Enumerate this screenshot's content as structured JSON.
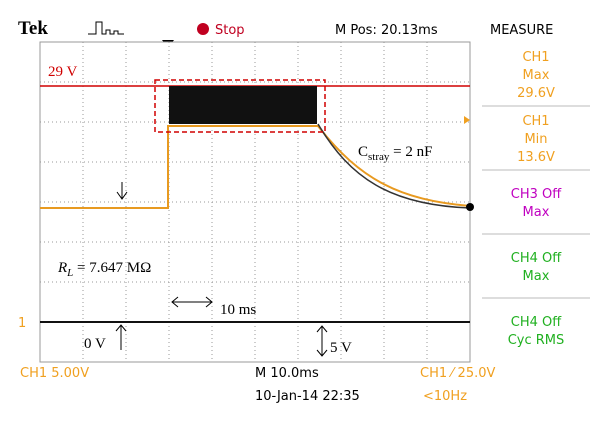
{
  "header": {
    "brand": "Tek",
    "status": "Stop",
    "position": "M Pos: 20.13ms",
    "panel_title": "MEASURE"
  },
  "measure": [
    {
      "lines": [
        "CH1",
        "Max",
        "29.6V"
      ],
      "color": "#f0a020"
    },
    {
      "lines": [
        "CH1",
        "Min",
        "13.6V"
      ],
      "color": "#f0a020"
    },
    {
      "lines": [
        "CH3 Off",
        "Max"
      ],
      "color": "#c000c0"
    },
    {
      "lines": [
        "CH4 Off",
        "Max"
      ],
      "color": "#20b020"
    },
    {
      "lines": [
        "CH4 Off",
        "Cyc RMS"
      ],
      "color": "#20b020"
    }
  ],
  "footer": {
    "ch_scale": "CH1  5.00V",
    "timebase": "M 10.0ms",
    "trigger": "CH1  ⁄  25.0V",
    "datetime": "10-Jan-14 22:35",
    "frequency": "<10Hz"
  },
  "screen": {
    "channel_marker": "1"
  },
  "annotations": {
    "voltage_level": "29 V",
    "c_symbol": "C",
    "c_sub": "stray",
    "c_rest": " = 2 nF",
    "r_symbol": "R",
    "r_sub": "L",
    "r_rest": " = 7.647 MΩ",
    "time_span": "10 ms",
    "zero": "0 V",
    "five": "5 V"
  }
}
